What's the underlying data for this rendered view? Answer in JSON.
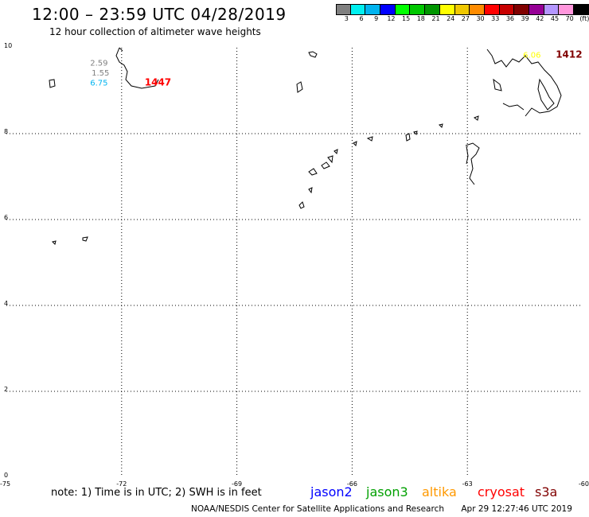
{
  "header": {
    "title": "12:00 – 23:59 UTC 04/28/2019",
    "subtitle": "12 hour collection of altimeter wave heights"
  },
  "legend": {
    "unit": "(ft)",
    "colors": [
      "#808080",
      "#00f0f0",
      "#00b4f0",
      "#0000ff",
      "#00ff00",
      "#00c800",
      "#009600",
      "#ffff00",
      "#f0c800",
      "#ff8c00",
      "#ff0000",
      "#c80000",
      "#800000",
      "#960096",
      "#b496ff",
      "#ff96dc",
      "#000000"
    ],
    "ticks": [
      "3",
      "6",
      "9",
      "12",
      "15",
      "18",
      "21",
      "24",
      "27",
      "30",
      "33",
      "36",
      "39",
      "42",
      "45",
      "70"
    ]
  },
  "map": {
    "x_ticks": [
      "-75",
      "-72",
      "-69",
      "-66",
      "-63",
      "-60"
    ],
    "y_ticks": [
      "10",
      "8",
      "6",
      "4",
      "2",
      "0"
    ],
    "labels": [
      {
        "text": "2.59",
        "color": "#808080",
        "lon": -72.82,
        "lat": 9.58
      },
      {
        "text": "1.55",
        "color": "#808080",
        "lon": -72.78,
        "lat": 9.35
      },
      {
        "text": "6.75",
        "color": "#00b4f0",
        "lon": -72.82,
        "lat": 9.12
      },
      {
        "text": "1447",
        "color": "#ff0000",
        "lon": -71.4,
        "lat": 9.12
      },
      {
        "text": "6.06",
        "color": "#ffff00",
        "lon": -61.55,
        "lat": 9.77
      },
      {
        "text": "1412",
        "color": "#800000",
        "lon": -60.7,
        "lat": 9.77
      }
    ]
  },
  "footer": {
    "note": "note: 1) Time is in UTC; 2) SWH is in feet",
    "satellites": [
      {
        "name": "jason2",
        "color": "#0000ff"
      },
      {
        "name": "jason3",
        "color": "#00a000"
      },
      {
        "name": "altika",
        "color": "#ff9900"
      },
      {
        "name": "cryosat",
        "color": "#ff0000"
      },
      {
        "name": "s3a",
        "color": "#800000"
      }
    ],
    "credit": "NOAA/NESDIS Center for Satellite Applications and Research",
    "timestamp": "Apr 29 12:27:46 UTC 2019"
  }
}
